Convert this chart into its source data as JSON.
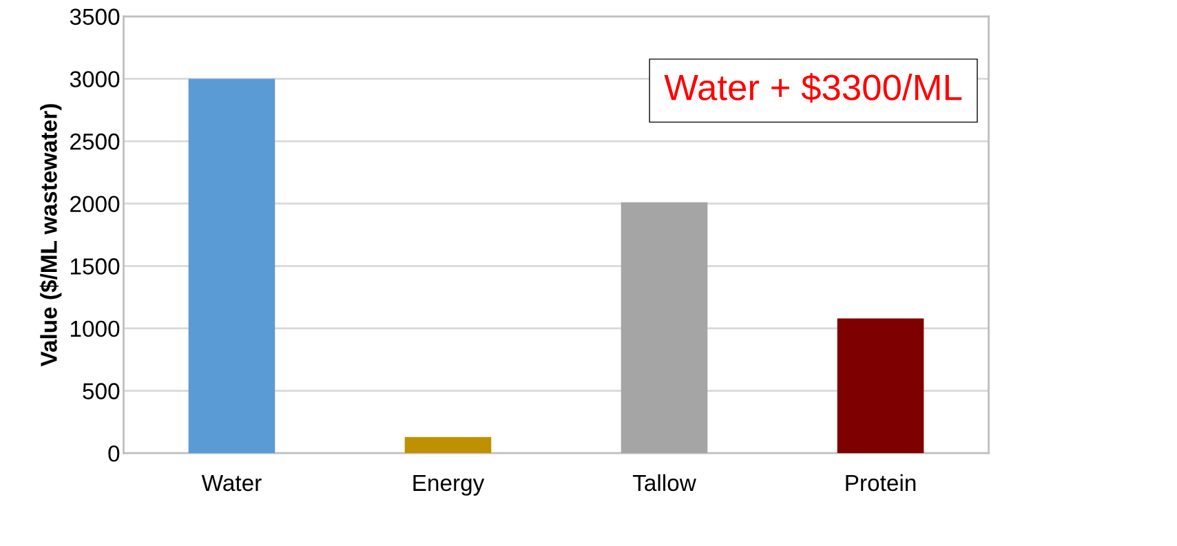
{
  "chart_data": {
    "type": "bar",
    "ylabel": "Value ($/ML wastewater)",
    "categories": [
      "Water",
      "Energy",
      "Tallow",
      "Protein"
    ],
    "values": [
      3000,
      130,
      2010,
      1080
    ],
    "colors": [
      "#5b9bd5",
      "#bf9000",
      "#a5a5a5",
      "#7f0000"
    ],
    "ylim": [
      0,
      3500
    ],
    "yticks": [
      0,
      500,
      1000,
      1500,
      2000,
      2500,
      3000,
      3500
    ],
    "grid": "y",
    "annotations": [
      "Water + $3300/ML"
    ]
  }
}
